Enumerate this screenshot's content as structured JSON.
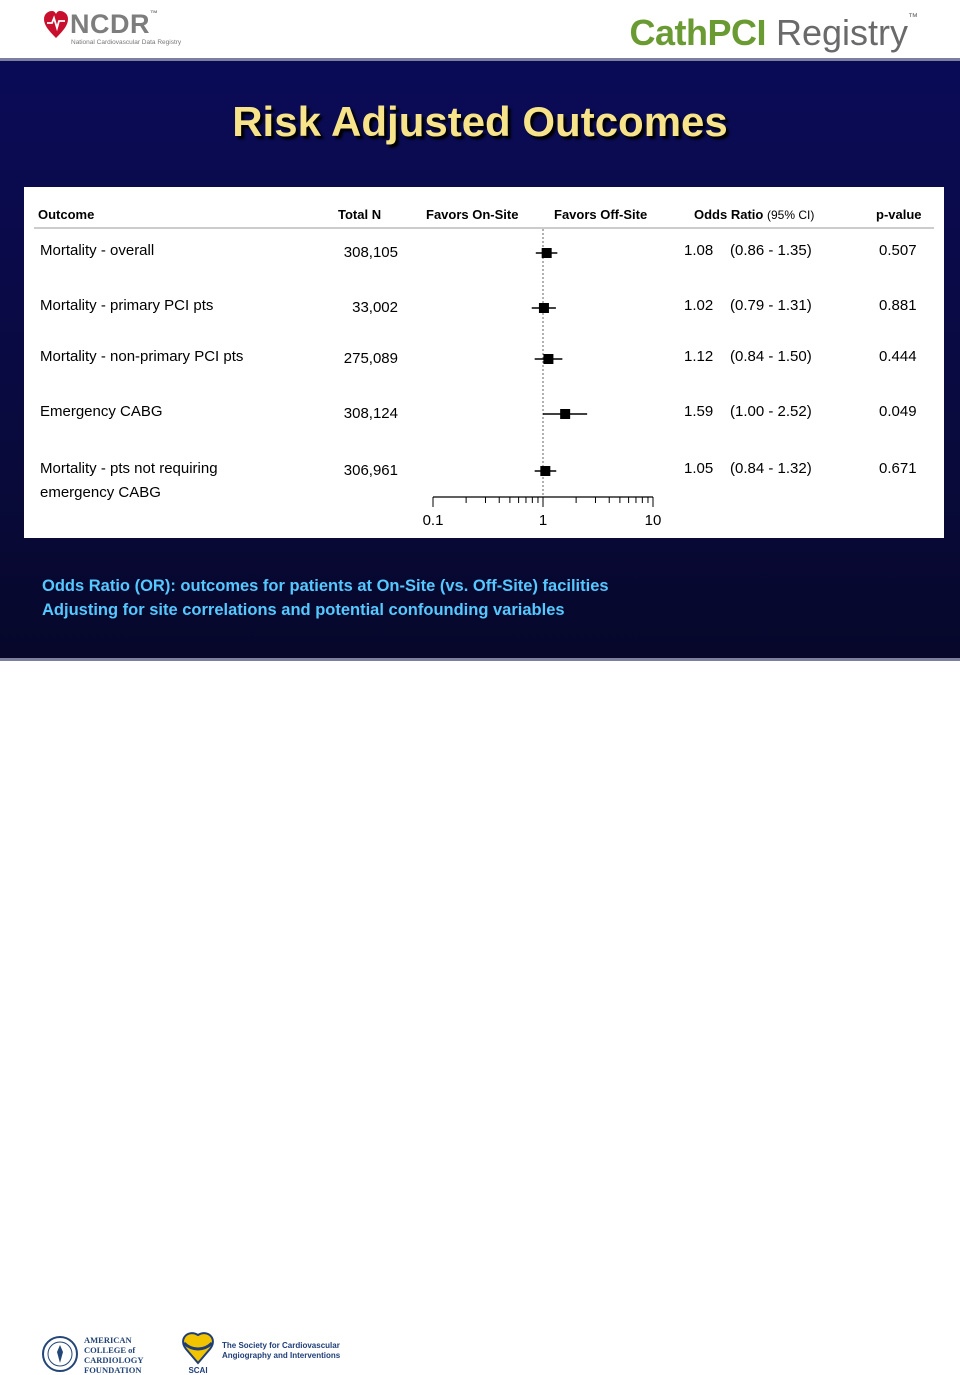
{
  "header": {
    "ncdr_name": "NCDR",
    "ncdr_tm": "™",
    "ncdr_subtitle": "National Cardiovascular Data Registry",
    "registry_cath": "CathPCI",
    "registry_word": " Registry",
    "registry_tm": "™"
  },
  "title": "Risk Adjusted Outcomes",
  "chart_data": {
    "type": "forest",
    "x_scale": "log",
    "xlim": [
      0.1,
      10
    ],
    "reference_line": 1,
    "x_ticks": [
      "0.1",
      "1",
      "10"
    ],
    "columns": {
      "outcome": "Outcome",
      "total_n": "Total N",
      "favors_on": "Favors On-Site",
      "favors_off": "Favors Off-Site",
      "or_head": "Odds Ratio",
      "ci_head": "(95% CI)",
      "p": "p-value"
    },
    "rows": [
      {
        "outcome_lines": [
          "Mortality - overall"
        ],
        "total_n": "308,105",
        "or": 1.08,
        "ci_low": 0.86,
        "ci_high": 1.35,
        "or_text": "1.08",
        "ci_text": "(0.86 -  1.35)",
        "p": "0.507"
      },
      {
        "outcome_lines": [
          "Mortality - primary PCI pts"
        ],
        "total_n": "33,002",
        "or": 1.02,
        "ci_low": 0.79,
        "ci_high": 1.31,
        "or_text": "1.02",
        "ci_text": "(0.79 -  1.31)",
        "p": "0.881"
      },
      {
        "outcome_lines": [
          "Mortality - non-primary PCI pts"
        ],
        "total_n": "275,089",
        "or": 1.12,
        "ci_low": 0.84,
        "ci_high": 1.5,
        "or_text": "1.12",
        "ci_text": "(0.84 -  1.50)",
        "p": "0.444"
      },
      {
        "outcome_lines": [
          "Emergency CABG"
        ],
        "total_n": "308,124",
        "or": 1.59,
        "ci_low": 1.0,
        "ci_high": 2.52,
        "or_text": "1.59",
        "ci_text": "(1.00 -  2.52)",
        "p": "0.049"
      },
      {
        "outcome_lines": [
          "Mortality - pts not requiring",
          "emergency CABG"
        ],
        "total_n": "306,961",
        "or": 1.05,
        "ci_low": 0.84,
        "ci_high": 1.32,
        "or_text": "1.05",
        "ci_text": "(0.84 -  1.32)",
        "p": "0.671"
      }
    ]
  },
  "footnotes": [
    "Odds Ratio (OR): outcomes for patients at On-Site (vs. Off-Site) facilities",
    "Adjusting for site correlations and potential confounding variables"
  ],
  "footer": {
    "acc_lines": [
      "AMERICAN",
      "COLLEGE of",
      "CARDIOLOGY",
      "FOUNDATION"
    ],
    "scai_lines": [
      "The Society for Cardiovascular",
      "Angiography and Interventions"
    ],
    "scai_abbr": "SCAI"
  },
  "colors": {
    "title": "#f6e38a",
    "footnote": "#55c8ff",
    "cathpci_green": "#6a9a32",
    "background": "#0a0b57"
  }
}
